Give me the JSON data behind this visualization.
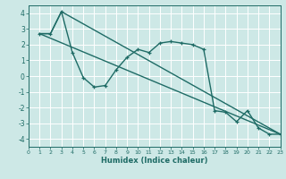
{
  "xlabel": "Humidex (Indice chaleur)",
  "xlim": [
    0,
    23
  ],
  "ylim": [
    -4.5,
    4.5
  ],
  "yticks": [
    -4,
    -3,
    -2,
    -1,
    0,
    1,
    2,
    3,
    4
  ],
  "xticks": [
    0,
    1,
    2,
    3,
    4,
    5,
    6,
    7,
    8,
    9,
    10,
    11,
    12,
    13,
    14,
    15,
    16,
    17,
    18,
    19,
    20,
    21,
    22,
    23
  ],
  "bg_color": "#cde8e6",
  "line_color": "#1e6b65",
  "grid_color": "#ffffff",
  "line1_x": [
    1,
    2,
    3,
    4,
    5,
    6,
    7,
    8,
    9,
    10,
    11,
    12,
    13,
    14,
    15,
    16,
    17,
    18,
    19,
    20,
    21,
    22,
    23
  ],
  "line1_y": [
    2.7,
    2.7,
    4.1,
    1.5,
    -0.1,
    -0.7,
    -0.6,
    0.4,
    1.2,
    1.7,
    1.5,
    2.1,
    2.2,
    2.1,
    2.0,
    1.7,
    -2.2,
    -2.3,
    -2.9,
    -2.2,
    -3.3,
    -3.7,
    -3.7
  ],
  "line2_x": [
    1,
    23
  ],
  "line2_y": [
    2.7,
    -3.7
  ],
  "line3_x": [
    1,
    2,
    3,
    23
  ],
  "line3_y": [
    2.7,
    2.7,
    4.1,
    -3.7
  ]
}
